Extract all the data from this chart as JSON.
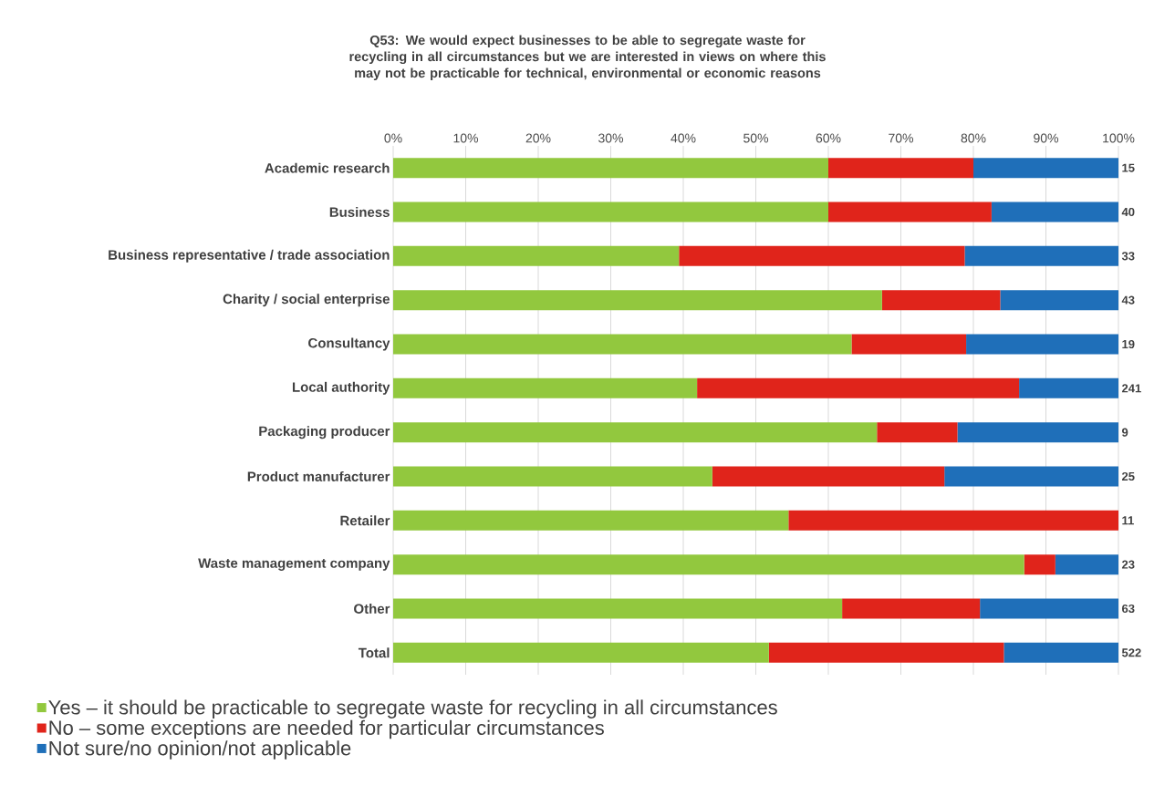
{
  "chart_data": {
    "type": "bar",
    "orientation": "horizontal",
    "stacked": true,
    "title": "Q53: We would expect businesses to be able to segregate waste for recycling in all circumstances but we are interested in views on where this may not be practicable for technical, environmental or economic reasons",
    "categories": [
      "Academic research",
      "Business",
      "Business representative / trade association",
      "Charity / social enterprise",
      "Consultancy",
      "Local authority",
      "Packaging producer",
      "Product manufacturer",
      "Retailer",
      "Waste management company",
      "Other",
      "Total"
    ],
    "series": [
      {
        "name": "Yes – it should be practicable to segregate waste for recycling in all circumstances",
        "color": "#92c83e",
        "values": [
          60.0,
          60.0,
          39.4,
          67.4,
          63.2,
          41.9,
          66.7,
          44.0,
          54.5,
          87.0,
          61.9,
          51.8
        ]
      },
      {
        "name": "No – some exceptions are needed for particular circumstances",
        "color": "#e0241b",
        "values": [
          20.0,
          22.5,
          39.4,
          16.3,
          15.8,
          44.4,
          11.1,
          32.0,
          45.5,
          4.3,
          19.0,
          32.4
        ]
      },
      {
        "name": "Not sure/no opinion/not applicable",
        "color": "#1f6fb9",
        "values": [
          20.0,
          17.5,
          21.2,
          16.3,
          21.0,
          13.7,
          22.2,
          24.0,
          0.0,
          8.7,
          19.1,
          15.8
        ]
      }
    ],
    "annotations": [
      "15",
      "40",
      "33",
      "43",
      "19",
      "241",
      "9",
      "25",
      "11",
      "23",
      "63",
      "522"
    ],
    "xlim": [
      0,
      100
    ],
    "xticks": [
      {
        "value": 0,
        "label": "0%"
      },
      {
        "value": 10,
        "label": "10%"
      },
      {
        "value": 20,
        "label": "20%"
      },
      {
        "value": 30,
        "label": "30%"
      },
      {
        "value": 40,
        "label": "40%"
      },
      {
        "value": 50,
        "label": "50%"
      },
      {
        "value": 60,
        "label": "60%"
      },
      {
        "value": 70,
        "label": "70%"
      },
      {
        "value": 80,
        "label": "80%"
      },
      {
        "value": 90,
        "label": "90%"
      },
      {
        "value": 100,
        "label": "100%"
      }
    ],
    "grid": "x",
    "legend": "bottom"
  }
}
